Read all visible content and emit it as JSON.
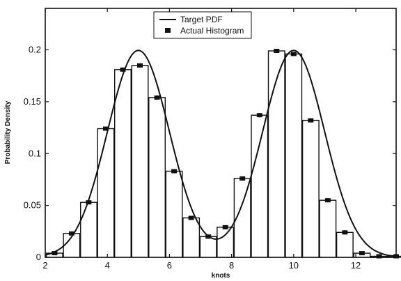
{
  "chart_data": {
    "type": "bar",
    "xlabel": "knots",
    "ylabel": "Probability Density",
    "xlim": [
      2,
      13.3
    ],
    "ylim": [
      0,
      0.24
    ],
    "grid": false,
    "legend_position": "top-center",
    "x_ticks": [
      2,
      4,
      6,
      8,
      10,
      12
    ],
    "x_tick_labels": [
      "2",
      "4",
      "6",
      "8",
      "10",
      "12"
    ],
    "y_ticks": [
      0,
      0.05,
      0.1,
      0.15,
      0.2
    ],
    "y_tick_labels": [
      "0",
      "0.05",
      "0.1",
      "0.15",
      "0.2"
    ],
    "bin_width": 0.55,
    "series": [
      {
        "name": "Target PDF",
        "type": "line",
        "color": "#111111",
        "components": [
          {
            "weight": 0.5,
            "mean": 5.0,
            "sd": 1.0
          },
          {
            "weight": 0.5,
            "mean": 10.0,
            "sd": 1.0
          }
        ]
      },
      {
        "name": "Actual Histogram",
        "type": "bar",
        "color": "#111111",
        "x": [
          2.3,
          2.85,
          3.4,
          3.95,
          4.5,
          5.05,
          5.6,
          6.15,
          6.7,
          7.25,
          7.8,
          8.35,
          8.9,
          9.45,
          10.0,
          10.55,
          11.1,
          11.65,
          12.2,
          12.75,
          13.3
        ],
        "values": [
          0.004,
          0.023,
          0.053,
          0.124,
          0.181,
          0.185,
          0.154,
          0.083,
          0.038,
          0.02,
          0.029,
          0.076,
          0.137,
          0.199,
          0.196,
          0.132,
          0.055,
          0.024,
          0.004,
          0.001,
          0.001
        ],
        "error": [
          0.001,
          0.001,
          0.002,
          0.002,
          0.002,
          0.002,
          0.002,
          0.002,
          0.002,
          0.002,
          0.002,
          0.002,
          0.002,
          0.002,
          0.002,
          0.002,
          0.002,
          0.002,
          0.001,
          0.001,
          0.001
        ]
      }
    ]
  }
}
